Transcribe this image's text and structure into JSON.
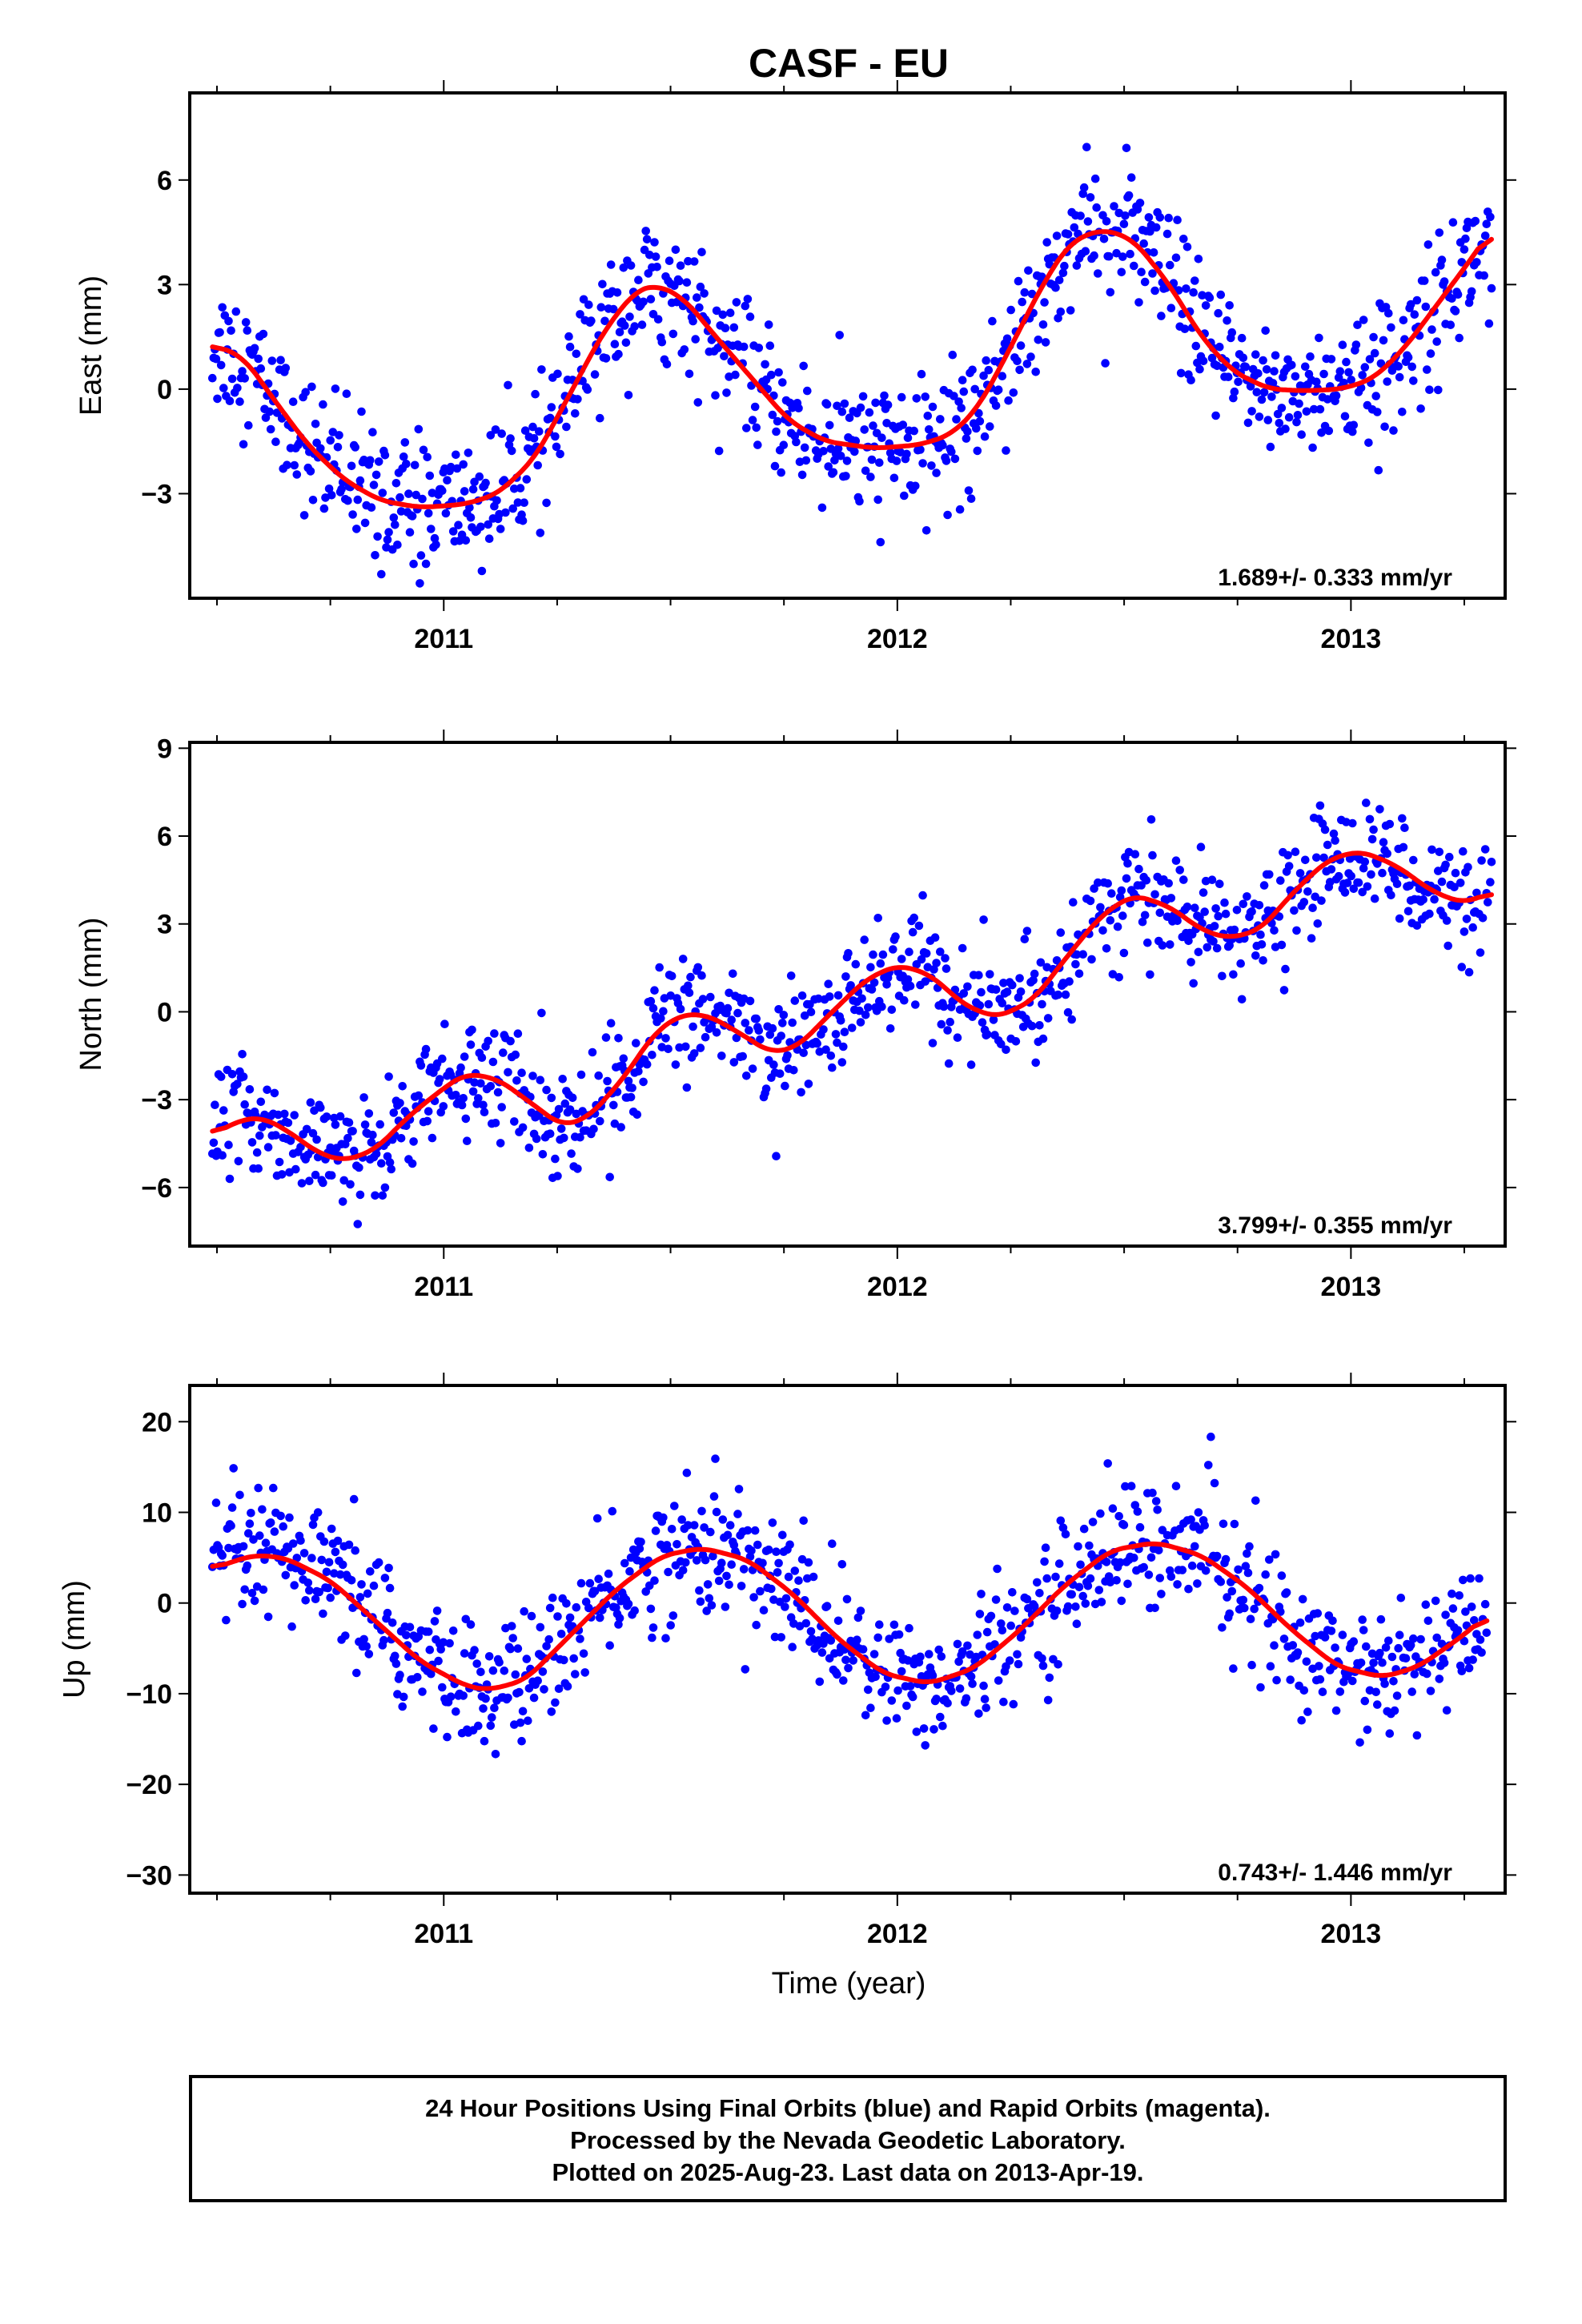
{
  "title": "CASF - EU",
  "xlabel": "Time (year)",
  "footer": {
    "line1": "24 Hour Positions Using Final Orbits (blue) and Rapid Orbits (magenta).",
    "line2": "Processed by the Nevada Geodetic Laboratory.",
    "line3": "Plotted on 2025-Aug-23. Last data on 2013-Apr-19."
  },
  "colors": {
    "points": "#0000ff",
    "model": "#ff0000",
    "frame": "#000000"
  },
  "chart_data": [
    {
      "type": "scatter",
      "ylabel": "East (mm)",
      "rate_label": "1.689+/- 0.333 mm/yr",
      "xlim": [
        2010.44,
        2013.34
      ],
      "ylim": [
        -6,
        8.5
      ],
      "yticks": [
        -3,
        0,
        3,
        6
      ],
      "xticks": [
        2011,
        2012,
        2013
      ],
      "minor_xticks": [
        2010.5,
        2010.75,
        2011.25,
        2011.5,
        2011.75,
        2012.25,
        2012.5,
        2012.75,
        2013.25
      ],
      "model_curve": [
        [
          2010.49,
          1.3
        ],
        [
          2010.56,
          0.9
        ],
        [
          2010.62,
          -0.2
        ],
        [
          2010.7,
          -1.6
        ],
        [
          2010.78,
          -2.6
        ],
        [
          2010.86,
          -3.2
        ],
        [
          2010.95,
          -3.4
        ],
        [
          2011.05,
          -3.3
        ],
        [
          2011.12,
          -3.0
        ],
        [
          2011.2,
          -2.0
        ],
        [
          2011.28,
          -0.1
        ],
        [
          2011.35,
          1.6
        ],
        [
          2011.42,
          2.8
        ],
        [
          2011.47,
          3.0
        ],
        [
          2011.53,
          2.6
        ],
        [
          2011.6,
          1.5
        ],
        [
          2011.68,
          0.3
        ],
        [
          2011.76,
          -0.9
        ],
        [
          2011.84,
          -1.5
        ],
        [
          2011.95,
          -1.7
        ],
        [
          2012.05,
          -1.6
        ],
        [
          2012.12,
          -1.3
        ],
        [
          2012.18,
          -0.5
        ],
        [
          2012.25,
          1.2
        ],
        [
          2012.32,
          3.0
        ],
        [
          2012.38,
          4.2
        ],
        [
          2012.45,
          4.6
        ],
        [
          2012.52,
          4.3
        ],
        [
          2012.6,
          3.0
        ],
        [
          2012.67,
          1.5
        ],
        [
          2012.74,
          0.5
        ],
        [
          2012.82,
          0.0
        ],
        [
          2012.9,
          -0.05
        ],
        [
          2012.98,
          0.0
        ],
        [
          2013.05,
          0.3
        ],
        [
          2013.12,
          1.2
        ],
        [
          2013.2,
          2.6
        ],
        [
          2013.28,
          4.0
        ],
        [
          2013.31,
          4.6
        ]
      ]
    },
    {
      "type": "scatter",
      "ylabel": "North (mm)",
      "rate_label": "3.799+/- 0.355 mm/yr",
      "xlim": [
        2010.44,
        2013.34
      ],
      "ylim": [
        -8,
        9.2
      ],
      "yticks": [
        -6,
        -3,
        0,
        3,
        6,
        9
      ],
      "xticks": [
        2011,
        2012,
        2013
      ],
      "minor_xticks": [
        2010.5,
        2010.75,
        2011.25,
        2011.5,
        2011.75,
        2012.25,
        2012.5,
        2012.75,
        2013.25
      ],
      "model_curve": [
        [
          2010.49,
          -4.2
        ],
        [
          2010.55,
          -3.7
        ],
        [
          2010.6,
          -3.6
        ],
        [
          2010.66,
          -4.1
        ],
        [
          2010.72,
          -4.8
        ],
        [
          2010.78,
          -5.1
        ],
        [
          2010.85,
          -4.7
        ],
        [
          2010.92,
          -3.6
        ],
        [
          2011.0,
          -2.6
        ],
        [
          2011.05,
          -2.1
        ],
        [
          2011.12,
          -2.3
        ],
        [
          2011.2,
          -3.2
        ],
        [
          2011.26,
          -3.9
        ],
        [
          2011.32,
          -3.6
        ],
        [
          2011.4,
          -2.2
        ],
        [
          2011.46,
          -0.8
        ],
        [
          2011.52,
          -0.1
        ],
        [
          2011.58,
          -0.1
        ],
        [
          2011.65,
          -0.7
        ],
        [
          2011.72,
          -1.4
        ],
        [
          2011.78,
          -1.2
        ],
        [
          2011.85,
          -0.1
        ],
        [
          2011.93,
          1.1
        ],
        [
          2012.0,
          1.6
        ],
        [
          2012.07,
          1.3
        ],
        [
          2012.15,
          0.2
        ],
        [
          2012.22,
          -0.2
        ],
        [
          2012.3,
          0.4
        ],
        [
          2012.38,
          2.0
        ],
        [
          2012.45,
          3.3
        ],
        [
          2012.52,
          4.0
        ],
        [
          2012.6,
          3.6
        ],
        [
          2012.67,
          2.8
        ],
        [
          2012.73,
          2.5
        ],
        [
          2012.8,
          2.8
        ],
        [
          2012.88,
          4.2
        ],
        [
          2012.95,
          5.2
        ],
        [
          2013.02,
          5.5
        ],
        [
          2013.1,
          5.0
        ],
        [
          2013.18,
          4.1
        ],
        [
          2013.25,
          3.7
        ],
        [
          2013.31,
          4.1
        ]
      ]
    },
    {
      "type": "scatter",
      "ylabel": "Up (mm)",
      "rate_label": "0.743+/- 1.446 mm/yr",
      "xlim": [
        2010.44,
        2013.34
      ],
      "ylim": [
        -32,
        24
      ],
      "yticks": [
        -30,
        -20,
        -10,
        0,
        10,
        20
      ],
      "xticks": [
        2011,
        2012,
        2013
      ],
      "minor_xticks": [
        2010.5,
        2010.75,
        2011.25,
        2011.5,
        2011.75,
        2012.25,
        2012.5,
        2012.75,
        2013.25
      ],
      "model_curve": [
        [
          2010.49,
          3.8
        ],
        [
          2010.58,
          5.3
        ],
        [
          2010.65,
          5.0
        ],
        [
          2010.75,
          2.5
        ],
        [
          2010.85,
          -2.0
        ],
        [
          2010.95,
          -6.5
        ],
        [
          2011.05,
          -9.2
        ],
        [
          2011.1,
          -9.6
        ],
        [
          2011.18,
          -8.5
        ],
        [
          2011.28,
          -3.5
        ],
        [
          2011.38,
          1.5
        ],
        [
          2011.48,
          5.2
        ],
        [
          2011.57,
          6.1
        ],
        [
          2011.67,
          4.8
        ],
        [
          2011.77,
          1.0
        ],
        [
          2011.87,
          -4.0
        ],
        [
          2011.97,
          -7.8
        ],
        [
          2012.07,
          -8.9
        ],
        [
          2012.17,
          -7.2
        ],
        [
          2012.27,
          -3.0
        ],
        [
          2012.37,
          2.0
        ],
        [
          2012.47,
          5.8
        ],
        [
          2012.57,
          6.7
        ],
        [
          2012.67,
          5.3
        ],
        [
          2012.77,
          1.8
        ],
        [
          2012.87,
          -3.0
        ],
        [
          2012.97,
          -7.0
        ],
        [
          2013.07,
          -8.2
        ],
        [
          2013.15,
          -7.0
        ],
        [
          2013.25,
          -3.5
        ],
        [
          2013.3,
          -1.3
        ]
      ]
    }
  ]
}
